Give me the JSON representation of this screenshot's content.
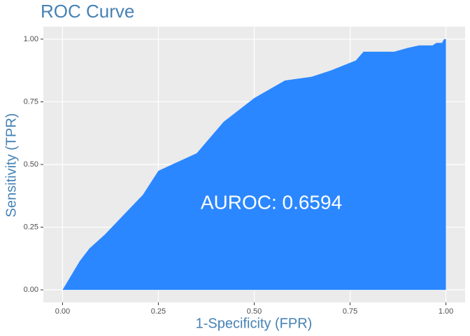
{
  "chart_data": {
    "type": "area",
    "title": "ROC Curve",
    "x_label": "1-Specificity (FPR)",
    "y_label": "Sensitivity (TPR)",
    "annotation": "AUROC: 0.6594",
    "x": [
      0,
      0.045,
      0.07,
      0.11,
      0.16,
      0.21,
      0.25,
      0.35,
      0.42,
      0.5,
      0.58,
      0.65,
      0.7,
      0.765,
      0.785,
      0.865,
      0.9,
      0.93,
      0.965,
      0.975,
      0.99,
      0.995,
      1.0
    ],
    "values": [
      0,
      0.115,
      0.165,
      0.22,
      0.3,
      0.38,
      0.475,
      0.545,
      0.67,
      0.765,
      0.835,
      0.85,
      0.875,
      0.915,
      0.95,
      0.95,
      0.965,
      0.975,
      0.975,
      0.985,
      0.985,
      1.0,
      1.0
    ],
    "color": "#2b87ff",
    "xlim": [
      -0.05,
      1.05
    ],
    "ylim": [
      -0.05,
      1.05
    ],
    "xticks": [
      {
        "value": 0,
        "label": "0.00"
      },
      {
        "value": 0.25,
        "label": "0.25"
      },
      {
        "value": 0.5,
        "label": "0.50"
      },
      {
        "value": 0.75,
        "label": "0.75"
      },
      {
        "value": 1,
        "label": "1.00"
      }
    ],
    "yticks": [
      {
        "value": 0,
        "label": "0.00"
      },
      {
        "value": 0.25,
        "label": "0.25"
      },
      {
        "value": 0.5,
        "label": "0.50"
      },
      {
        "value": 0.75,
        "label": "0.75"
      },
      {
        "value": 1,
        "label": "1.00"
      }
    ],
    "grid": true
  }
}
